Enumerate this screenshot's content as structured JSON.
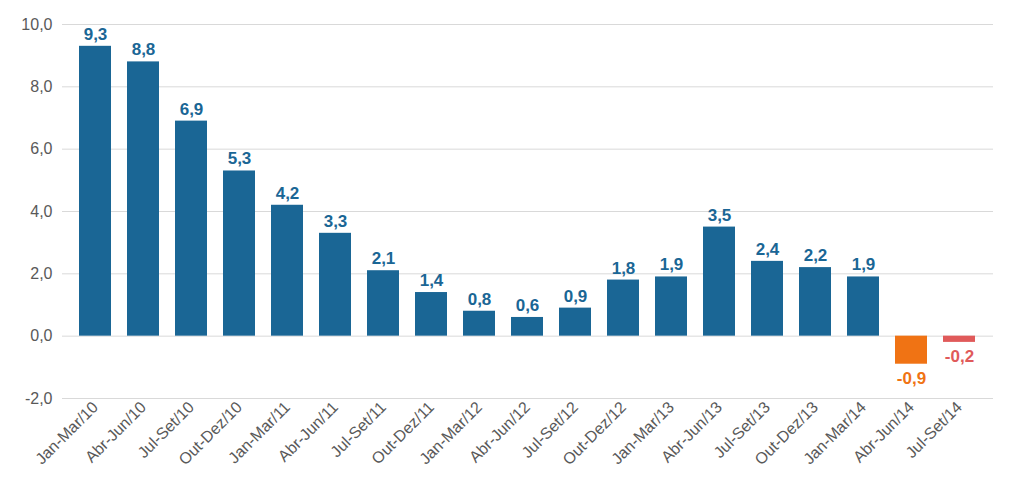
{
  "chart_data": {
    "type": "bar",
    "categories": [
      "Jan-Mar/10",
      "Abr-Jun/10",
      "Jul-Set/10",
      "Out-Dez/10",
      "Jan-Mar/11",
      "Abr-Jun/11",
      "Jul-Set/11",
      "Out-Dez/11",
      "Jan-Mar/12",
      "Abr-Jun/12",
      "Jul-Set/12",
      "Out-Dez/12",
      "Jan-Mar/13",
      "Abr-Jun/13",
      "Jul-Set/13",
      "Out-Dez/13",
      "Jan-Mar/14",
      "Abr-Jun/14",
      "Jul-Set/14"
    ],
    "values": [
      9.3,
      8.8,
      6.9,
      5.3,
      4.2,
      3.3,
      2.1,
      1.4,
      0.8,
      0.6,
      0.9,
      1.8,
      1.9,
      3.5,
      2.4,
      2.2,
      1.9,
      -0.9,
      -0.2
    ],
    "value_labels": [
      "9,3",
      "8,8",
      "6,9",
      "5,3",
      "4,2",
      "3,3",
      "2,1",
      "1,4",
      "0,8",
      "0,6",
      "0,9",
      "1,8",
      "1,9",
      "3,5",
      "2,4",
      "2,2",
      "1,9",
      "-0,9",
      "-0,2"
    ],
    "colors": [
      "#1a6695",
      "#1a6695",
      "#1a6695",
      "#1a6695",
      "#1a6695",
      "#1a6695",
      "#1a6695",
      "#1a6695",
      "#1a6695",
      "#1a6695",
      "#1a6695",
      "#1a6695",
      "#1a6695",
      "#1a6695",
      "#1a6695",
      "#1a6695",
      "#1a6695",
      "#f07314",
      "#e05a5a"
    ],
    "ylim": [
      -2,
      10
    ],
    "yticks": [
      {
        "value": -2,
        "label": "-2,0"
      },
      {
        "value": 0,
        "label": "0,0"
      },
      {
        "value": 2,
        "label": "2,0"
      },
      {
        "value": 4,
        "label": "4,0"
      },
      {
        "value": 6,
        "label": "6,0"
      },
      {
        "value": 8,
        "label": "8,0"
      },
      {
        "value": 10,
        "label": "10,0"
      }
    ],
    "grid": true,
    "data_labels": true
  }
}
